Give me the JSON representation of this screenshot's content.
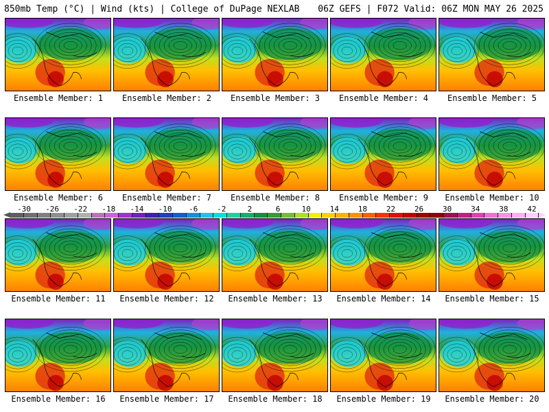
{
  "header": {
    "left": "850mb Temp (°C) | Wind (kts) | College of DuPage NEXLAB",
    "right": "06Z GEFS | F072 Valid: 06Z MON MAY 26 2025"
  },
  "panel_label_prefix": "Ensemble Member: ",
  "members": [
    "1",
    "2",
    "3",
    "4",
    "5",
    "6",
    "7",
    "8",
    "9",
    "10",
    "11",
    "12",
    "13",
    "14",
    "15",
    "16",
    "17",
    "18",
    "19",
    "20"
  ],
  "colorbar": {
    "ticks": [
      "-30",
      "-26",
      "-22",
      "-18",
      "-14",
      "-10",
      "-6",
      "-2",
      "2",
      "6",
      "10",
      "14",
      "18",
      "22",
      "26",
      "30",
      "34",
      "38",
      "42"
    ],
    "colors": [
      "#606060",
      "#707070",
      "#808080",
      "#909090",
      "#a0a0a0",
      "#b0b0b0",
      "#c070c0",
      "#d060e0",
      "#a030d0",
      "#7020c0",
      "#4020b0",
      "#2040c0",
      "#1060d0",
      "#1090e0",
      "#20c0f0",
      "#00e0e0",
      "#20d0a0",
      "#10b070",
      "#109040",
      "#30a030",
      "#70c030",
      "#b0e020",
      "#f0f000",
      "#ffd000",
      "#ffb000",
      "#ff9000",
      "#ff6000",
      "#ff3000",
      "#e01000",
      "#c00000",
      "#a00000",
      "#900010",
      "#a01050",
      "#c02080",
      "#e040b0",
      "#f070d0",
      "#ff90e0",
      "#ffb0f0",
      "#ffd0ff"
    ]
  }
}
